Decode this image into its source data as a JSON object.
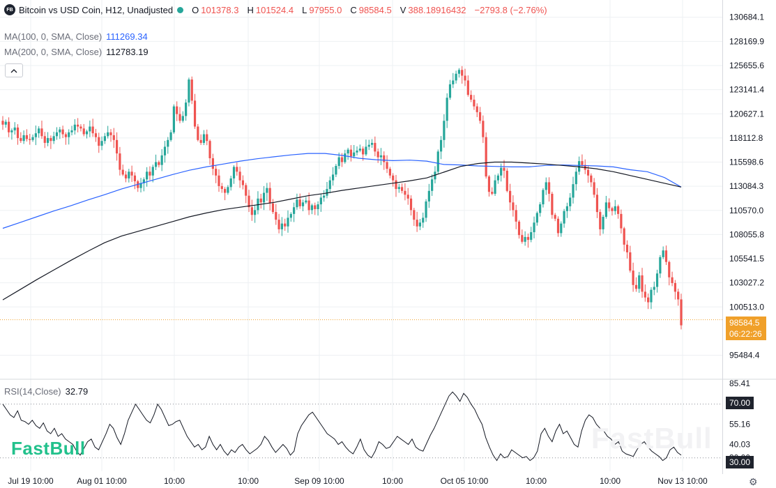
{
  "header": {
    "logo": "FB",
    "title": "Bitcoin vs USD Coin, H12, Unadjusted",
    "o_label": "O",
    "o_value": "101378.3",
    "h_label": "H",
    "h_value": "101524.4",
    "l_label": "L",
    "l_value": "97955.0",
    "c_label": "C",
    "c_value": "98584.5",
    "v_label": "V",
    "v_value": "388.18916432",
    "change": "−2793.8 (−2.76%)"
  },
  "ma100": {
    "label": "MA(100, 0, SMA, Close)",
    "value": "111269.34",
    "color": "#2962ff"
  },
  "ma200": {
    "label": "MA(200, 0, SMA, Close)",
    "value": "112783.19",
    "color": "#131722"
  },
  "rsi": {
    "label": "RSI(14,Close)",
    "value": "32.79"
  },
  "price_tag": {
    "price": "98584.5",
    "countdown": "06:22:26"
  },
  "rsi_tags": {
    "upper": "70.00",
    "lower": "30.00"
  },
  "watermark": "FastBull",
  "icons": {
    "collapse": "chevron-up-icon",
    "settings": "gear-icon"
  },
  "colors": {
    "up": "#26a69a",
    "down": "#ef5350",
    "ma100": "#2962ff",
    "ma200": "#131722",
    "price_tag": "#f0a02a"
  },
  "chart_data": [
    {
      "type": "candlestick",
      "title": "Bitcoin vs USD Coin, H12, Unadjusted",
      "y_ticks": [
        "130684.1",
        "128169.9",
        "125655.6",
        "123141.4",
        "120627.1",
        "118112.8",
        "115598.6",
        "113084.3",
        "110570.0",
        "108055.8",
        "105541.5",
        "103027.2",
        "100513.0",
        "95484.4"
      ],
      "ylim": [
        94000,
        131900
      ],
      "x_ticks": [
        "Jul 19 10:00",
        "Aug 01 10:00",
        "10:00",
        "10:00",
        "Sep 09 10:00",
        "10:00",
        "Oct 05 10:00",
        "10:00",
        "10:00",
        "Nov 13 10:00"
      ],
      "grid": true,
      "close_path": [
        119500,
        119800,
        118700,
        118900,
        119200,
        118100,
        117800,
        118400,
        118000,
        117900,
        118200,
        118600,
        119100,
        118300,
        117600,
        118100,
        117800,
        118300,
        118700,
        119000,
        118500,
        118200,
        118700,
        118900,
        119500,
        119300,
        119100,
        118500,
        118800,
        119300,
        118600,
        118200,
        117300,
        117800,
        118300,
        118700,
        118400,
        117900,
        116500,
        114800,
        114300,
        113900,
        114600,
        114200,
        113600,
        112900,
        113400,
        113800,
        114600,
        114200,
        115100,
        115600,
        115300,
        116300,
        117200,
        117900,
        118700,
        121400,
        120600,
        119900,
        120400,
        121800,
        124200,
        122000,
        119300,
        117900,
        117600,
        118500,
        117800,
        116000,
        114900,
        114200,
        113100,
        112800,
        112400,
        113000,
        113900,
        115100,
        114600,
        113700,
        113200,
        112100,
        110900,
        110100,
        110600,
        111800,
        111400,
        112400,
        112900,
        111300,
        110400,
        109600,
        108600,
        109200,
        108900,
        109800,
        110200,
        110900,
        111700,
        111000,
        111400,
        111600,
        110600,
        111100,
        110700,
        111200,
        111900,
        112100,
        112800,
        113700,
        114300,
        115200,
        116100,
        115600,
        116500,
        116900,
        116200,
        116600,
        116800,
        117000,
        116400,
        117200,
        117400,
        117600,
        116700,
        116100,
        116300,
        115600,
        114900,
        114200,
        113700,
        112800,
        113000,
        112600,
        112200,
        111800,
        110600,
        109600,
        108900,
        109300,
        109800,
        111500,
        112600,
        113800,
        114600,
        116700,
        117900,
        119900,
        122300,
        123700,
        124100,
        124800,
        125200,
        124600,
        124100,
        122600,
        122100,
        121400,
        120800,
        119900,
        118200,
        114100,
        112500,
        112300,
        113700,
        114200,
        115000,
        114700,
        112600,
        111400,
        110600,
        109400,
        108000,
        107300,
        107800,
        107500,
        108300,
        109300,
        110300,
        111200,
        112700,
        113500,
        112300,
        110100,
        109700,
        108200,
        109200,
        110500,
        111000,
        111900,
        113300,
        114600,
        115700,
        115300,
        114800,
        114200,
        113500,
        112200,
        110400,
        108600,
        109900,
        111400,
        110800,
        110500,
        111000,
        110200,
        108700,
        107000,
        106200,
        104300,
        102800,
        102400,
        103800,
        102100,
        101500,
        101000,
        102300,
        102600,
        104000,
        105700,
        106400,
        105200,
        103600,
        103000,
        102100,
        101300,
        98600
      ],
      "ma100": [
        108700,
        109300,
        109900,
        110500,
        111050,
        111650,
        112200,
        112800,
        113300,
        113800,
        114300,
        114750,
        115100,
        115400,
        115700,
        115950,
        116150,
        116350,
        116500,
        116500,
        116300,
        116000,
        115850,
        115750,
        115800,
        115700,
        115350,
        115300,
        115200,
        115150,
        115100,
        115100,
        115250,
        115300,
        115250,
        115200,
        115100,
        114800,
        114600,
        114000,
        113000
      ],
      "ma200": [
        101250,
        102300,
        103350,
        104350,
        105350,
        106300,
        107200,
        107900,
        108400,
        108900,
        109400,
        109900,
        110300,
        110650,
        110900,
        111150,
        111400,
        111750,
        112100,
        112350,
        112650,
        112900,
        113150,
        113400,
        113650,
        113950,
        114550,
        115150,
        115450,
        115600,
        115600,
        115500,
        115400,
        115250,
        115100,
        114900,
        114600,
        114200,
        113800,
        113400,
        113000
      ]
    },
    {
      "type": "line",
      "title": "RSI(14,Close)",
      "y_ticks": [
        "85.41",
        "70.00",
        "55.16",
        "40.03",
        "30.00"
      ],
      "ylim": [
        20,
        88
      ],
      "levels": [
        70,
        30
      ],
      "rsi": [
        70,
        66,
        62,
        60,
        65,
        58,
        57,
        55,
        58,
        54,
        52,
        56,
        50,
        48,
        52,
        46,
        48,
        44,
        42,
        40,
        35,
        32,
        37,
        42,
        44,
        38,
        36,
        42,
        48,
        55,
        52,
        45,
        40,
        48,
        58,
        64,
        70,
        66,
        62,
        58,
        56,
        62,
        70,
        66,
        60,
        54,
        55,
        57,
        58,
        52,
        46,
        42,
        38,
        40,
        36,
        38,
        46,
        40,
        36,
        40,
        35,
        32,
        36,
        34,
        38,
        40,
        36,
        33,
        35,
        37,
        40,
        46,
        43,
        38,
        34,
        37,
        40,
        37,
        32,
        35,
        48,
        54,
        58,
        62,
        64,
        60,
        56,
        52,
        48,
        46,
        44,
        40,
        42,
        38,
        35,
        33,
        38,
        44,
        36,
        32,
        30,
        35,
        42,
        40,
        37,
        38,
        42,
        46,
        44,
        42,
        40,
        44,
        38,
        36,
        35,
        41,
        47,
        52,
        58,
        64,
        70,
        76,
        79,
        76,
        72,
        78,
        75,
        70,
        66,
        60,
        55,
        45,
        38,
        32,
        28,
        33,
        30,
        31,
        36,
        34,
        32,
        30,
        31,
        28,
        30,
        35,
        48,
        52,
        46,
        42,
        50,
        55,
        48,
        50,
        45,
        40,
        38,
        50,
        58,
        62,
        60,
        55,
        52,
        50,
        46,
        44,
        40,
        42,
        35,
        33,
        32,
        31,
        36,
        40,
        42,
        38,
        35,
        33,
        31,
        28,
        30,
        36,
        38,
        34,
        32
      ]
    }
  ]
}
